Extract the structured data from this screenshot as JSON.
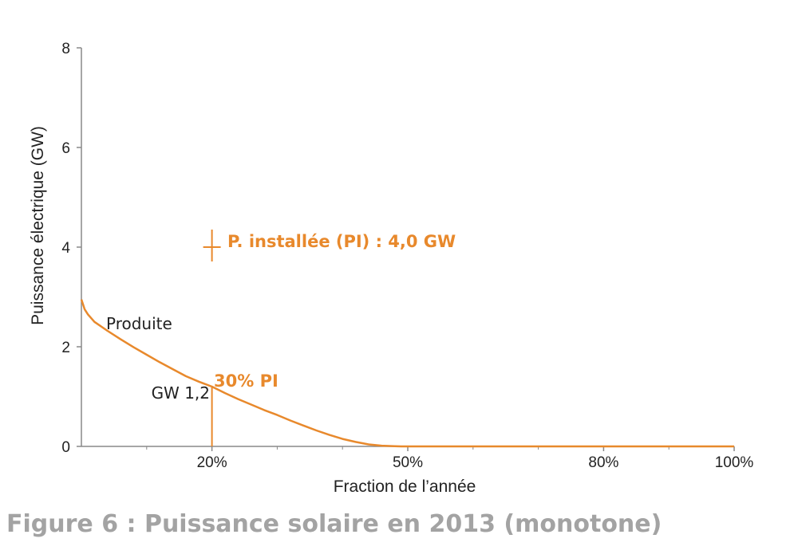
{
  "caption": "Figure 6 : Puissance solaire en 2013 (monotone)",
  "colors": {
    "curve": "#e8892c",
    "axis": "#888888",
    "caption": "#a3a3a3",
    "text": "#222222"
  },
  "chart_data": {
    "type": "line",
    "title": "",
    "xlabel": "Fraction de l’année",
    "ylabel": "Puissance électrique (GW)",
    "xlim": [
      0,
      100
    ],
    "ylim": [
      0,
      8
    ],
    "x_ticks": [
      {
        "value": 20,
        "label": "20%"
      },
      {
        "value": 50,
        "label": "50%"
      },
      {
        "value": 80,
        "label": "80%"
      },
      {
        "value": 100,
        "label": "100%"
      }
    ],
    "x_minor_ticks": [
      10,
      30,
      40,
      60,
      70,
      90
    ],
    "y_ticks": [
      {
        "value": 0,
        "label": "0"
      },
      {
        "value": 2,
        "label": "2"
      },
      {
        "value": 4,
        "label": "4"
      },
      {
        "value": 6,
        "label": "6"
      },
      {
        "value": 8,
        "label": "8"
      }
    ],
    "series": [
      {
        "x": [
          0,
          0.5,
          1,
          2,
          4,
          6,
          8,
          10,
          12,
          14,
          16,
          18,
          20,
          22,
          24,
          26,
          28,
          30,
          32,
          34,
          36,
          38,
          40,
          42,
          44,
          46,
          48,
          49,
          50,
          60,
          70,
          80,
          90,
          100
        ],
        "y": [
          2.95,
          2.75,
          2.65,
          2.5,
          2.32,
          2.15,
          1.99,
          1.84,
          1.69,
          1.55,
          1.41,
          1.3,
          1.2,
          1.07,
          0.95,
          0.84,
          0.73,
          0.63,
          0.52,
          0.42,
          0.32,
          0.23,
          0.15,
          0.09,
          0.04,
          0.015,
          0.005,
          0.0,
          0.0,
          0.0,
          0.0,
          0.0,
          0.0,
          0.0
        ]
      }
    ],
    "annotations": {
      "installed_label": "P. installée (PI) : 4,0 GW",
      "installed_point": {
        "x": 20,
        "y": 4.0
      },
      "produced_label": "Produite",
      "pct_label": "30% PI",
      "gw_label": "GW 1,2",
      "marker_x": 20,
      "marker_y": 1.2
    }
  }
}
